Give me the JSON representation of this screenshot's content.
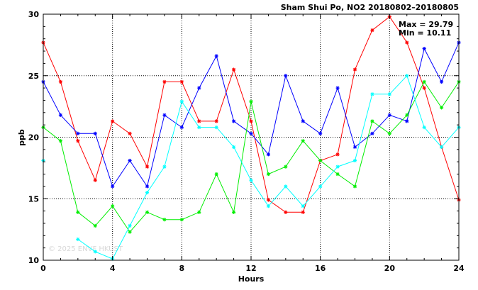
{
  "chart_data": {
    "type": "line",
    "title": "Sham Shui Po, NO2 20180802–20180805",
    "xlabel": "Hours",
    "ylabel": "ppb",
    "xlim": [
      0,
      24
    ],
    "ylim": [
      10,
      30
    ],
    "xticks": [
      0,
      4,
      8,
      12,
      16,
      20,
      24
    ],
    "yticks": [
      10,
      15,
      20,
      25,
      30
    ],
    "grid": true,
    "grid_style": "dotted",
    "x": [
      0,
      1,
      2,
      3,
      4,
      5,
      6,
      7,
      8,
      9,
      10,
      11,
      12,
      13,
      14,
      15,
      16,
      17,
      18,
      19,
      20,
      21,
      22,
      23,
      24
    ],
    "stats": {
      "max_text": "Max = 29.79",
      "min_text": "Min = 10.11"
    },
    "watermark": "© 2025 ENVF HKUST",
    "series": [
      {
        "color": "#ff0000",
        "values": [
          27.7,
          24.5,
          19.7,
          16.5,
          21.3,
          20.3,
          17.6,
          24.5,
          24.5,
          21.3,
          21.3,
          25.5,
          21.3,
          14.9,
          13.9,
          13.9,
          18.1,
          18.6,
          25.5,
          28.7,
          29.79,
          27.7,
          24.0,
          19.2,
          14.9
        ]
      },
      {
        "color": "#0000ff",
        "values": [
          24.5,
          21.8,
          20.3,
          20.3,
          16.0,
          18.1,
          16.0,
          21.8,
          20.8,
          24.0,
          26.6,
          21.3,
          20.3,
          18.6,
          25.0,
          21.3,
          20.3,
          24.0,
          19.2,
          20.3,
          21.8,
          21.3,
          27.2,
          24.5,
          27.7
        ]
      },
      {
        "color": "#00ee00",
        "values": [
          20.8,
          19.7,
          13.9,
          12.8,
          14.4,
          12.3,
          13.9,
          13.3,
          13.3,
          13.9,
          17.0,
          13.9,
          22.9,
          17.0,
          17.6,
          19.7,
          18.1,
          17.0,
          16.0,
          21.3,
          20.3,
          21.8,
          24.5,
          22.4,
          24.5
        ]
      },
      {
        "color": "#00ffff",
        "values": [
          18.1,
          null,
          11.7,
          10.7,
          10.11,
          12.8,
          15.5,
          17.6,
          22.9,
          20.8,
          20.8,
          19.2,
          16.5,
          14.4,
          16.0,
          14.4,
          16.0,
          17.6,
          18.1,
          23.5,
          23.5,
          25.0,
          20.8,
          19.2,
          20.8
        ]
      }
    ]
  }
}
